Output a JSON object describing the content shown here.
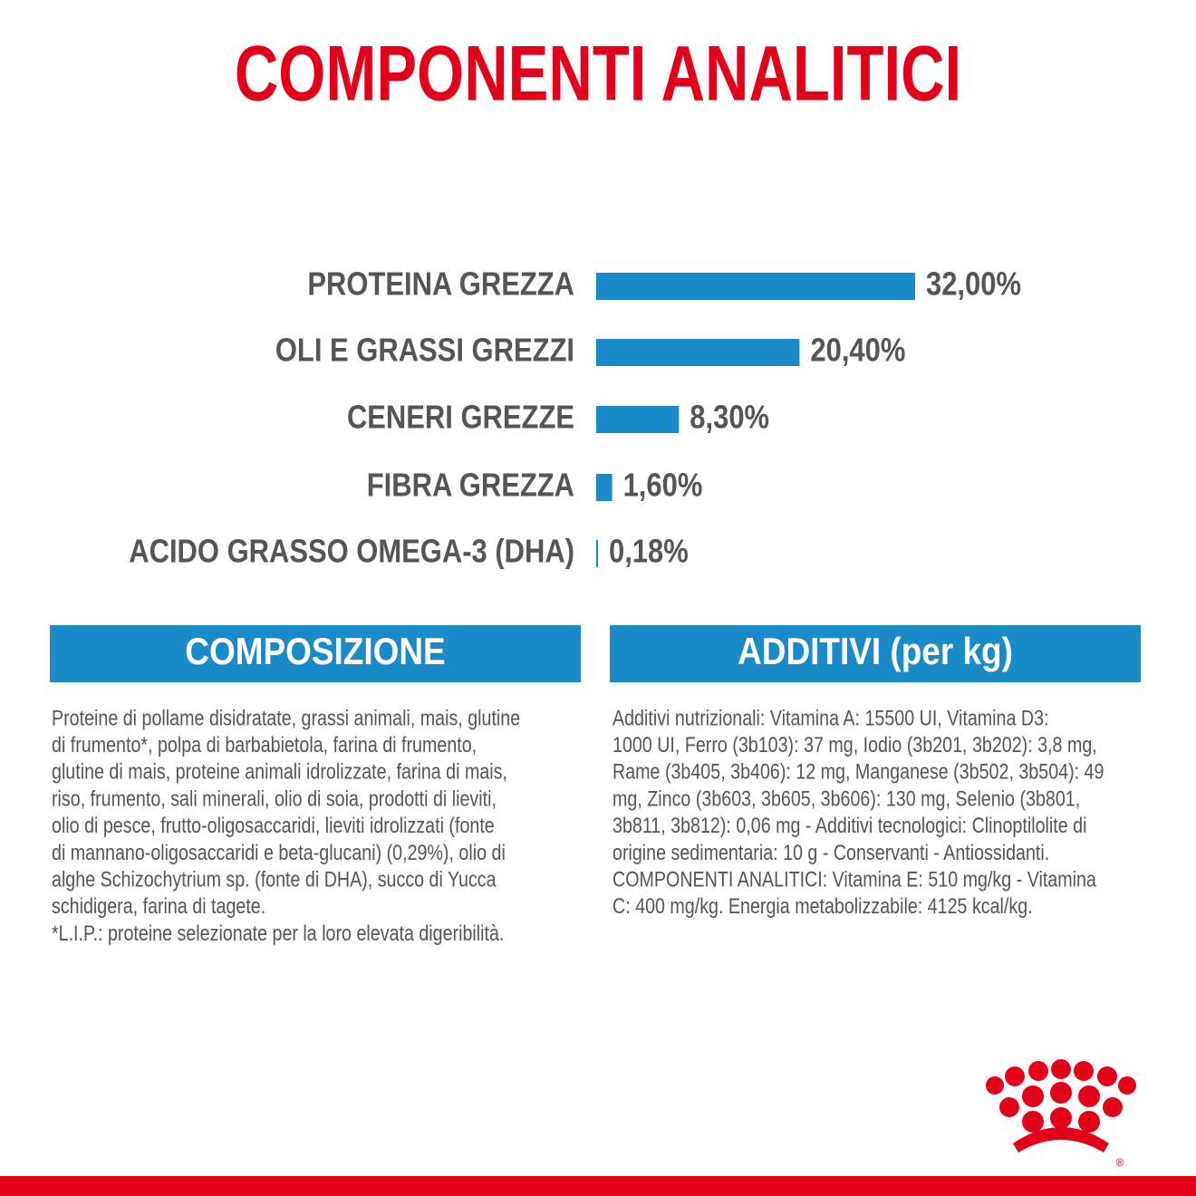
{
  "chart_data": {
    "type": "hbar",
    "title": "COMPONENTI ANALITICI",
    "categories": [
      "PROTEINA GREZZA",
      "OLI E GRASSI GREZZI",
      "CENERI GREZZE",
      "FIBRA GREZZA",
      "ACIDO GRASSO OMEGA-3 (DHA)"
    ],
    "values": [
      32,
      20.4,
      8.3,
      1.6,
      0.18
    ],
    "value_labels": [
      "32,00%",
      "20,40%",
      "8,30%",
      "1,60%",
      "0,18%"
    ],
    "color": "#1a8bc6"
  },
  "composition": {
    "title": "COMPOSIZIONE",
    "lines": [
      "Proteine di pollame disidratate, grassi animali, mais, glutine",
      "di frumento*, polpa di barbabietola, farina di frumento,",
      "glutine di mais, proteine animali idrolizzate, farina di mais,",
      "riso, frumento, sali minerali, olio di soia, prodotti di lieviti,",
      "olio di pesce, frutto-oligosaccaridi, lieviti idrolizzati (fonte",
      "di mannano-oligosaccaridi e beta-glucani) (0,29%), olio di",
      "alghe Schizochytrium sp. (fonte di DHA), succo di Yucca",
      "schidigera, farina di tagete.",
      "*L.I.P.: proteine selezionate per la loro elevata digeribilità."
    ]
  },
  "additives": {
    "title": "ADDITIVI (per kg)",
    "lines": [
      "Additivi nutrizionali: Vitamina A: 15500 UI, Vitamina D3:",
      "1000 UI, Ferro (3b103): 37 mg, Iodio (3b201, 3b202): 3,8 mg,",
      "Rame (3b405, 3b406): 12 mg, Manganese (3b502, 3b504): 49",
      "mg, Zinco (3b603, 3b605, 3b606): 130 mg, Selenio (3b801,",
      "3b811, 3b812): 0,06 mg - Additivi tecnologici: Clinoptilolite di",
      "origine sedimentaria: 10 g - Conservanti - Antiossidanti.",
      "COMPONENTI ANALITICI: Vitamina E: 510 mg/kg - Vitamina",
      "C: 400 mg/kg. Energia metabolizzabile: 4125 kcal/kg."
    ]
  },
  "brand": {
    "registered": "®"
  }
}
